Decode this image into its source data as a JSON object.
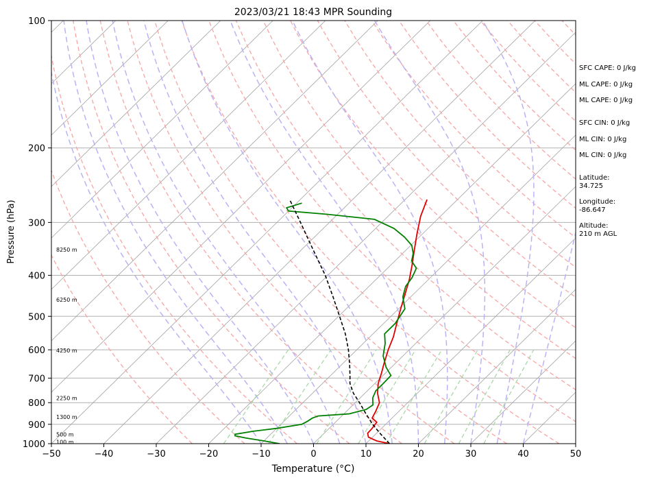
{
  "chart_data": {
    "type": "skew-t",
    "title": "2023/03/21 18:43 MPR Sounding",
    "xlabel": "Temperature (°C)",
    "ylabel": "Pressure (hPa)",
    "x_ticks": [
      -50,
      -40,
      -30,
      -20,
      -10,
      0,
      10,
      20,
      30,
      40,
      50
    ],
    "y_ticks": [
      100,
      200,
      300,
      400,
      500,
      600,
      700,
      800,
      900,
      1000
    ],
    "xlim": [
      -50,
      50
    ],
    "ylim": [
      1000,
      100
    ],
    "y_scale": "log",
    "grid": true,
    "series": [
      {
        "color": "#e00000",
        "points": [
          {
            "p": 1000,
            "t": 14.5
          },
          {
            "p": 985,
            "t": 11.5
          },
          {
            "p": 965,
            "t": 9.2
          },
          {
            "p": 945,
            "t": 8.3
          },
          {
            "p": 920,
            "t": 8.2
          },
          {
            "p": 890,
            "t": 7.9
          },
          {
            "p": 870,
            "t": 6.2
          },
          {
            "p": 840,
            "t": 5.6
          },
          {
            "p": 800,
            "t": 4.6
          },
          {
            "p": 760,
            "t": 2.4
          },
          {
            "p": 720,
            "t": 0.6
          },
          {
            "p": 680,
            "t": -0.8
          },
          {
            "p": 650,
            "t": -2.0
          },
          {
            "p": 600,
            "t": -4.0
          },
          {
            "p": 560,
            "t": -5.5
          },
          {
            "p": 520,
            "t": -7.5
          },
          {
            "p": 480,
            "t": -9.6
          },
          {
            "p": 440,
            "t": -11.8
          },
          {
            "p": 410,
            "t": -13.6
          },
          {
            "p": 380,
            "t": -15.8
          },
          {
            "p": 350,
            "t": -18.3
          },
          {
            "p": 320,
            "t": -21.0
          },
          {
            "p": 290,
            "t": -23.8
          },
          {
            "p": 265,
            "t": -25.8
          }
        ]
      },
      {
        "color": "#008000",
        "points": [
          {
            "p": 1000,
            "t": -6.5
          },
          {
            "p": 985,
            "t": -10
          },
          {
            "p": 970,
            "t": -14
          },
          {
            "p": 958,
            "t": -16.5
          },
          {
            "p": 950,
            "t": -16.8
          },
          {
            "p": 935,
            "t": -14
          },
          {
            "p": 920,
            "t": -10
          },
          {
            "p": 900,
            "t": -6
          },
          {
            "p": 885,
            "t": -5.5
          },
          {
            "p": 870,
            "t": -5.2
          },
          {
            "p": 860,
            "t": -4.5
          },
          {
            "p": 850,
            "t": 1.0
          },
          {
            "p": 830,
            "t": 3.4
          },
          {
            "p": 810,
            "t": 3.8
          },
          {
            "p": 780,
            "t": 2.4
          },
          {
            "p": 750,
            "t": 1.6
          },
          {
            "p": 720,
            "t": 1.6
          },
          {
            "p": 690,
            "t": 1.5
          },
          {
            "p": 660,
            "t": -1.0
          },
          {
            "p": 620,
            "t": -3.8
          },
          {
            "p": 580,
            "t": -5.8
          },
          {
            "p": 550,
            "t": -7.8
          },
          {
            "p": 520,
            "t": -7.8
          },
          {
            "p": 480,
            "t": -8.8
          },
          {
            "p": 450,
            "t": -11.5
          },
          {
            "p": 425,
            "t": -13.0
          },
          {
            "p": 405,
            "t": -13.5
          },
          {
            "p": 385,
            "t": -14.5
          },
          {
            "p": 370,
            "t": -16.8
          },
          {
            "p": 355,
            "t": -18.0
          },
          {
            "p": 340,
            "t": -19.8
          },
          {
            "p": 325,
            "t": -22.8
          },
          {
            "p": 310,
            "t": -26.5
          },
          {
            "p": 295,
            "t": -32
          },
          {
            "p": 287,
            "t": -42
          },
          {
            "p": 282,
            "t": -50
          },
          {
            "p": 277,
            "t": -51
          },
          {
            "p": 270,
            "t": -49
          }
        ]
      },
      {
        "color": "#000000",
        "dashed": true,
        "points": [
          {
            "p": 1000,
            "t": 14.5
          },
          {
            "p": 950,
            "t": 11.0
          },
          {
            "p": 900,
            "t": 7.5
          },
          {
            "p": 850,
            "t": 4.2
          },
          {
            "p": 800,
            "t": 0.8
          },
          {
            "p": 760,
            "t": -2.2
          },
          {
            "p": 720,
            "t": -4.8
          },
          {
            "p": 690,
            "t": -6.3
          },
          {
            "p": 650,
            "t": -8.5
          },
          {
            "p": 600,
            "t": -11.6
          },
          {
            "p": 550,
            "t": -15.3
          },
          {
            "p": 500,
            "t": -19.8
          },
          {
            "p": 450,
            "t": -24.8
          },
          {
            "p": 400,
            "t": -30.5
          },
          {
            "p": 350,
            "t": -37.5
          },
          {
            "p": 300,
            "t": -45.5
          },
          {
            "p": 265,
            "t": -52.0
          }
        ]
      }
    ],
    "height_labels": [
      {
        "p": 348,
        "text": "8250 m"
      },
      {
        "p": 457,
        "text": "6250 m"
      },
      {
        "p": 602,
        "text": "4250 m"
      },
      {
        "p": 780,
        "text": "2250 m"
      },
      {
        "p": 865,
        "text": "1300 m"
      },
      {
        "p": 950,
        "text": "500 m"
      },
      {
        "p": 990,
        "text": "100 m"
      }
    ],
    "annotations": [
      "SFC CAPE: 0 J/kg",
      "ML CAPE: 0 J/kg",
      "ML CAPE: 0 J/kg",
      "SFC CIN: 0 J/kg",
      "ML CIN: 0 J/kg",
      "ML CIN: 0 J/kg",
      "Latitude:",
      "34.725",
      "Longitude:",
      "-86.647",
      "Altitude:",
      "210 m AGL"
    ]
  }
}
